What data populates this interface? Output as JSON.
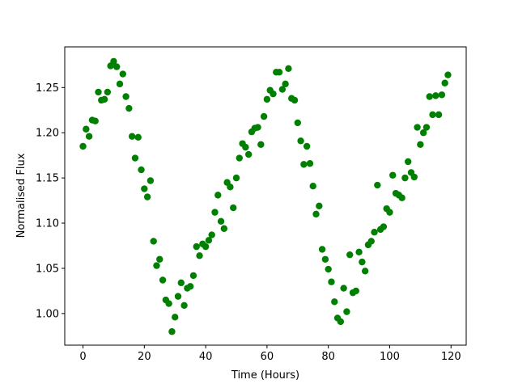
{
  "chart_data": {
    "type": "scatter",
    "x_label": "Time (Hours)",
    "y_label": "Normalised Flux",
    "color": "#008000",
    "xlim": [
      -5.95,
      124.95
    ],
    "ylim": [
      0.965,
      1.295
    ],
    "xticks": [
      0,
      20,
      40,
      60,
      80,
      100,
      120
    ],
    "yticks": [
      {
        "value": 1.0,
        "label": "1.00"
      },
      {
        "value": 1.05,
        "label": "1.05"
      },
      {
        "value": 1.1,
        "label": "1.10"
      },
      {
        "value": 1.15,
        "label": "1.15"
      },
      {
        "value": 1.2,
        "label": "1.20"
      },
      {
        "value": 1.25,
        "label": "1.25"
      }
    ],
    "x": [
      0,
      1,
      2,
      3,
      4,
      5,
      6,
      7,
      8,
      9,
      10,
      11,
      12,
      13,
      14,
      15,
      16,
      17,
      18,
      19,
      20,
      21,
      22,
      23,
      24,
      25,
      26,
      27,
      28,
      29,
      30,
      31,
      32,
      33,
      34,
      35,
      36,
      37,
      38,
      39,
      40,
      41,
      42,
      43,
      44,
      45,
      46,
      47,
      48,
      49,
      50,
      51,
      52,
      53,
      54,
      55,
      56,
      57,
      58,
      59,
      60,
      61,
      62,
      63,
      64,
      65,
      66,
      67,
      68,
      69,
      70,
      71,
      72,
      73,
      74,
      75,
      76,
      77,
      78,
      79,
      80,
      81,
      82,
      83,
      84,
      85,
      86,
      87,
      88,
      89,
      90,
      91,
      92,
      93,
      94,
      95,
      96,
      97,
      98,
      99,
      100,
      101,
      102,
      103,
      104,
      105,
      106,
      107,
      108,
      109,
      110,
      111,
      112,
      113,
      114,
      115,
      116,
      117,
      118,
      119
    ],
    "values": [
      1.185,
      1.204,
      1.196,
      1.214,
      1.213,
      1.245,
      1.236,
      1.237,
      1.245,
      1.274,
      1.279,
      1.273,
      1.254,
      1.265,
      1.24,
      1.227,
      1.196,
      1.172,
      1.195,
      1.159,
      1.138,
      1.129,
      1.147,
      1.08,
      1.053,
      1.06,
      1.037,
      1.015,
      1.011,
      0.98,
      0.996,
      1.019,
      1.034,
      1.009,
      1.028,
      1.03,
      1.042,
      1.074,
      1.064,
      1.077,
      1.074,
      1.081,
      1.087,
      1.112,
      1.131,
      1.102,
      1.094,
      1.145,
      1.14,
      1.117,
      1.15,
      1.172,
      1.188,
      1.184,
      1.176,
      1.201,
      1.205,
      1.206,
      1.187,
      1.218,
      1.237,
      1.247,
      1.243,
      1.267,
      1.267,
      1.248,
      1.254,
      1.271,
      1.238,
      1.236,
      1.211,
      1.191,
      1.165,
      1.185,
      1.166,
      1.141,
      1.11,
      1.119,
      1.071,
      1.06,
      1.049,
      1.035,
      1.013,
      0.995,
      0.991,
      1.028,
      1.002,
      1.065,
      1.023,
      1.025,
      1.068,
      1.057,
      1.047,
      1.076,
      1.08,
      1.09,
      1.142,
      1.093,
      1.096,
      1.116,
      1.112,
      1.153,
      1.133,
      1.131,
      1.128,
      1.15,
      1.168,
      1.156,
      1.151,
      1.206,
      1.187,
      1.2,
      1.206,
      1.24,
      1.22,
      1.241,
      1.22,
      1.242,
      1.255,
      1.264
    ]
  }
}
